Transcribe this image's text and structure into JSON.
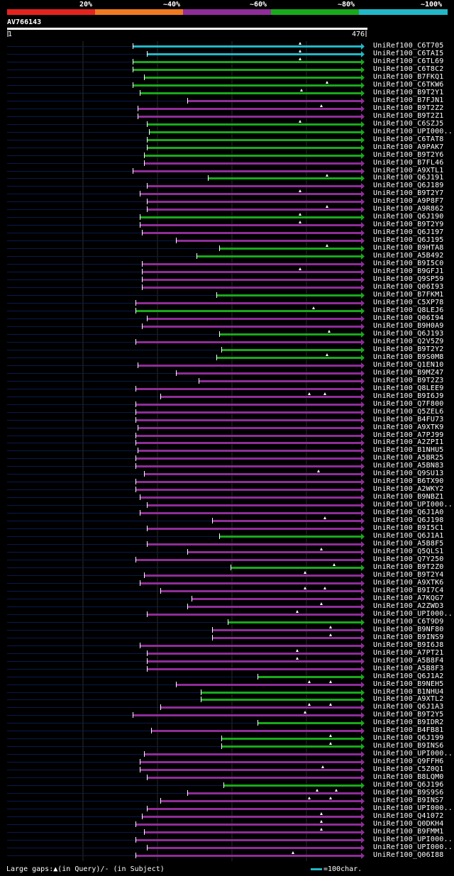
{
  "legend": {
    "labels": [
      "20%",
      "~40%",
      "~60%",
      "~80%",
      "~100%"
    ],
    "colors": [
      "#e3241e",
      "#ef7a1f",
      "#8f2d99",
      "#19a91c",
      "#22b7c7"
    ]
  },
  "query": {
    "id": "AV766143",
    "start": "1",
    "end": "476"
  },
  "footer": {
    "gaps": "Large gaps:▲(in Query)/- (in Subject)",
    "scale": "=100char."
  },
  "line_colors": {
    "query": "#0a1a4a",
    "grid": "#2a2a2a",
    "marker": "#ffffff"
  },
  "hits": [
    {
      "name": "UniRef100_C6T705",
      "start": 188,
      "color": "cyan",
      "tri": [
        423
      ]
    },
    {
      "name": "UniRef100_C6TAI5",
      "start": 208,
      "color": "cyan",
      "tri": [
        423
      ]
    },
    {
      "name": "UniRef100_C6TL69",
      "start": 188,
      "color": "green",
      "tri": [
        423
      ]
    },
    {
      "name": "UniRef100_C6T8C2",
      "start": 188,
      "color": "green",
      "tri": []
    },
    {
      "name": "UniRef100_B7FKQ1",
      "start": 204,
      "color": "green",
      "tri": []
    },
    {
      "name": "UniRef100_C6TKW6",
      "start": 188,
      "color": "green",
      "tri": [
        461
      ]
    },
    {
      "name": "UniRef100_B9T2Y1",
      "start": 198,
      "color": "green",
      "tri": [
        425
      ]
    },
    {
      "name": "UniRef100_B7FJN1",
      "start": 265,
      "color": "magenta",
      "tri": []
    },
    {
      "name": "UniRef100_B9T2Z2",
      "start": 195,
      "color": "magenta",
      "tri": [
        453
      ]
    },
    {
      "name": "UniRef100_B9T2Z1",
      "start": 195,
      "color": "magenta",
      "tri": []
    },
    {
      "name": "UniRef100_C6SZJ5",
      "start": 208,
      "color": "green",
      "tri": [
        423
      ]
    },
    {
      "name": "UniRef100_UPI000..",
      "start": 211,
      "color": "green",
      "tri": []
    },
    {
      "name": "UniRef100_C6TAT8",
      "start": 208,
      "color": "green",
      "tri": []
    },
    {
      "name": "UniRef100_A9PAK7",
      "start": 208,
      "color": "green",
      "tri": []
    },
    {
      "name": "UniRef100_B9T2Y6",
      "start": 204,
      "color": "green",
      "tri": []
    },
    {
      "name": "UniRef100_B7FL46",
      "start": 204,
      "color": "magenta",
      "tri": []
    },
    {
      "name": "UniRef100_A9XTL1",
      "start": 188,
      "color": "magenta",
      "tri": []
    },
    {
      "name": "UniRef100_Q6J191",
      "start": 294,
      "color": "green",
      "tri": [
        461
      ]
    },
    {
      "name": "UniRef100_Q6J189",
      "start": 208,
      "color": "magenta",
      "tri": []
    },
    {
      "name": "UniRef100_B9T2Y7",
      "start": 198,
      "color": "magenta",
      "tri": [
        423
      ]
    },
    {
      "name": "UniRef100_A9P8F7",
      "start": 208,
      "color": "magenta",
      "tri": []
    },
    {
      "name": "UniRef100_A9R862",
      "start": 208,
      "color": "magenta",
      "tri": [
        461
      ]
    },
    {
      "name": "UniRef100_Q6J190",
      "start": 198,
      "color": "green",
      "tri": [
        423
      ]
    },
    {
      "name": "UniRef100_B9T2Y9",
      "start": 198,
      "color": "magenta",
      "tri": [
        423
      ]
    },
    {
      "name": "UniRef100_Q6J197",
      "start": 201,
      "color": "magenta",
      "tri": []
    },
    {
      "name": "UniRef100_Q6J195",
      "start": 249,
      "color": "magenta",
      "tri": []
    },
    {
      "name": "UniRef100_B9HTA8",
      "start": 310,
      "color": "green",
      "tri": [
        461
      ]
    },
    {
      "name": "UniRef100_A5B492",
      "start": 278,
      "color": "green",
      "tri": []
    },
    {
      "name": "UniRef100_B9I5C0",
      "start": 201,
      "color": "magenta",
      "tri": []
    },
    {
      "name": "UniRef100_B9GFJ1",
      "start": 201,
      "color": "magenta",
      "tri": [
        423
      ]
    },
    {
      "name": "UniRef100_Q9SP59",
      "start": 201,
      "color": "magenta",
      "tri": []
    },
    {
      "name": "UniRef100_Q06I93",
      "start": 201,
      "color": "magenta",
      "tri": []
    },
    {
      "name": "UniRef100_B7FKM1",
      "start": 306,
      "color": "green",
      "tri": []
    },
    {
      "name": "UniRef100_C5XP78",
      "start": 192,
      "color": "magenta",
      "tri": []
    },
    {
      "name": "UniRef100_Q8LEJ6",
      "start": 192,
      "color": "green",
      "tri": [
        442
      ]
    },
    {
      "name": "UniRef100_Q06I94",
      "start": 208,
      "color": "magenta",
      "tri": []
    },
    {
      "name": "UniRef100_B9H0A9",
      "start": 201,
      "color": "magenta",
      "tri": []
    },
    {
      "name": "UniRef100_Q6J193",
      "start": 310,
      "color": "green",
      "tri": [
        464
      ]
    },
    {
      "name": "UniRef100_Q2V5Z9",
      "start": 192,
      "color": "magenta",
      "tri": []
    },
    {
      "name": "UniRef100_B9T2Y2",
      "start": 313,
      "color": "green",
      "tri": []
    },
    {
      "name": "UniRef100_B9S0M8",
      "start": 306,
      "color": "green",
      "tri": [
        461
      ]
    },
    {
      "name": "UniRef100_Q1EN10",
      "start": 195,
      "color": "magenta",
      "tri": []
    },
    {
      "name": "UniRef100_B9MZ47",
      "start": 249,
      "color": "magenta",
      "tri": []
    },
    {
      "name": "UniRef100_B9T2Z3",
      "start": 281,
      "color": "magenta",
      "tri": []
    },
    {
      "name": "UniRef100_Q8LEE9",
      "start": 192,
      "color": "magenta",
      "tri": []
    },
    {
      "name": "UniRef100_B9I6J9",
      "start": 227,
      "color": "magenta",
      "tri": [
        436,
        458
      ]
    },
    {
      "name": "UniRef100_Q7F800",
      "start": 192,
      "color": "magenta",
      "tri": []
    },
    {
      "name": "UniRef100_Q5ZEL6",
      "start": 192,
      "color": "magenta",
      "tri": []
    },
    {
      "name": "UniRef100_B4FU73",
      "start": 192,
      "color": "magenta",
      "tri": []
    },
    {
      "name": "UniRef100_A9XTK9",
      "start": 195,
      "color": "magenta",
      "tri": []
    },
    {
      "name": "UniRef100_A7PJ99",
      "start": 192,
      "color": "magenta",
      "tri": []
    },
    {
      "name": "UniRef100_A2ZPI1",
      "start": 192,
      "color": "magenta",
      "tri": []
    },
    {
      "name": "UniRef100_B1NHU5",
      "start": 195,
      "color": "magenta",
      "tri": []
    },
    {
      "name": "UniRef100_A5BR25",
      "start": 192,
      "color": "magenta",
      "tri": []
    },
    {
      "name": "UniRef100_A5BN83",
      "start": 192,
      "color": "magenta",
      "tri": []
    },
    {
      "name": "UniRef100_Q9SU13",
      "start": 204,
      "color": "magenta",
      "tri": [
        449
      ]
    },
    {
      "name": "UniRef100_B6TX90",
      "start": 192,
      "color": "magenta",
      "tri": []
    },
    {
      "name": "UniRef100_A2WKY2",
      "start": 192,
      "color": "magenta",
      "tri": []
    },
    {
      "name": "UniRef100_B9NBZ1",
      "start": 198,
      "color": "magenta",
      "tri": []
    },
    {
      "name": "UniRef100_UPI000..",
      "start": 208,
      "color": "magenta",
      "tri": []
    },
    {
      "name": "UniRef100_Q6J1A0",
      "start": 198,
      "color": "magenta",
      "tri": []
    },
    {
      "name": "UniRef100_Q6J198",
      "start": 300,
      "color": "magenta",
      "tri": [
        458
      ]
    },
    {
      "name": "UniRef100_B9I5C1",
      "start": 208,
      "color": "magenta",
      "tri": []
    },
    {
      "name": "UniRef100_Q6J1A1",
      "start": 310,
      "color": "green",
      "tri": []
    },
    {
      "name": "UniRef100_A5B8F5",
      "start": 208,
      "color": "magenta",
      "tri": []
    },
    {
      "name": "UniRef100_Q5QLS1",
      "start": 265,
      "color": "magenta",
      "tri": [
        453
      ]
    },
    {
      "name": "UniRef100_Q7Y250",
      "start": 192,
      "color": "magenta",
      "tri": []
    },
    {
      "name": "UniRef100_B9T2Z0",
      "start": 326,
      "color": "green",
      "tri": [
        471
      ]
    },
    {
      "name": "UniRef100_B9T2Y4",
      "start": 204,
      "color": "magenta",
      "tri": [
        430
      ]
    },
    {
      "name": "UniRef100_A9XTK6",
      "start": 198,
      "color": "magenta",
      "tri": []
    },
    {
      "name": "UniRef100_B9I7C4",
      "start": 227,
      "color": "magenta",
      "tri": [
        430,
        458
      ]
    },
    {
      "name": "UniRef100_A7KQG7",
      "start": 271,
      "color": "magenta",
      "tri": []
    },
    {
      "name": "UniRef100_A2ZWD3",
      "start": 265,
      "color": "magenta",
      "tri": [
        453
      ]
    },
    {
      "name": "UniRef100_UPI000..",
      "start": 208,
      "color": "magenta",
      "tri": [
        419
      ]
    },
    {
      "name": "UniRef100_C6T9D9",
      "start": 322,
      "color": "green",
      "tri": []
    },
    {
      "name": "UniRef100_B9NF80",
      "start": 300,
      "color": "magenta",
      "tri": [
        466
      ]
    },
    {
      "name": "UniRef100_B9INS9",
      "start": 300,
      "color": "magenta",
      "tri": [
        466
      ]
    },
    {
      "name": "UniRef100_B9I6J8",
      "start": 198,
      "color": "magenta",
      "tri": []
    },
    {
      "name": "UniRef100_A7PT21",
      "start": 208,
      "color": "magenta",
      "tri": [
        419
      ]
    },
    {
      "name": "UniRef100_A5B8F4",
      "start": 208,
      "color": "magenta",
      "tri": [
        419
      ]
    },
    {
      "name": "UniRef100_A5B8F3",
      "start": 208,
      "color": "magenta",
      "tri": []
    },
    {
      "name": "UniRef100_Q6J1A2",
      "start": 364,
      "color": "green",
      "tri": []
    },
    {
      "name": "UniRef100_B9NEH5",
      "start": 249,
      "color": "magenta",
      "tri": [
        436,
        466
      ]
    },
    {
      "name": "UniRef100_B1NHU4",
      "start": 284,
      "color": "green",
      "tri": []
    },
    {
      "name": "UniRef100_A9XTL2",
      "start": 284,
      "color": "green",
      "tri": []
    },
    {
      "name": "UniRef100_Q6J1A3",
      "start": 227,
      "color": "magenta",
      "tri": [
        436,
        466
      ]
    },
    {
      "name": "UniRef100_B9T2Y5",
      "start": 188,
      "color": "magenta",
      "tri": [
        430
      ]
    },
    {
      "name": "UniRef100_B9IDR2",
      "start": 364,
      "color": "green",
      "tri": []
    },
    {
      "name": "UniRef100_B4FB81",
      "start": 214,
      "color": "magenta",
      "tri": []
    },
    {
      "name": "UniRef100_Q6J199",
      "start": 313,
      "color": "green",
      "tri": [
        466
      ]
    },
    {
      "name": "UniRef100_B9INS6",
      "start": 313,
      "color": "green",
      "tri": [
        466
      ]
    },
    {
      "name": "UniRef100_UPI000..",
      "start": 204,
      "color": "magenta",
      "tri": []
    },
    {
      "name": "UniRef100_Q9FFH6",
      "start": 198,
      "color": "magenta",
      "tri": []
    },
    {
      "name": "UniRef100_C5Z0Q1",
      "start": 198,
      "color": "magenta",
      "tri": [
        455
      ]
    },
    {
      "name": "UniRef100_B8LQM0",
      "start": 208,
      "color": "magenta",
      "tri": []
    },
    {
      "name": "UniRef100_Q6J196",
      "start": 316,
      "color": "green",
      "tri": []
    },
    {
      "name": "UniRef100_B9S9S6",
      "start": 265,
      "color": "magenta",
      "tri": [
        447,
        474
      ]
    },
    {
      "name": "UniRef100_B9INS7",
      "start": 227,
      "color": "magenta",
      "tri": [
        436,
        466
      ]
    },
    {
      "name": "UniRef100_UPI000..",
      "start": 208,
      "color": "magenta",
      "tri": []
    },
    {
      "name": "UniRef100_Q41072",
      "start": 201,
      "color": "magenta",
      "tri": [
        453
      ]
    },
    {
      "name": "UniRef100_Q0DKH4",
      "start": 192,
      "color": "magenta",
      "tri": [
        453
      ]
    },
    {
      "name": "UniRef100_B9FMM1",
      "start": 204,
      "color": "magenta",
      "tri": [
        453
      ]
    },
    {
      "name": "UniRef100_UPI000..",
      "start": 192,
      "color": "magenta",
      "tri": []
    },
    {
      "name": "UniRef100_UPI000..",
      "start": 208,
      "color": "magenta",
      "tri": []
    },
    {
      "name": "UniRef100_Q06I88",
      "start": 192,
      "color": "magenta",
      "tri": [
        413
      ]
    }
  ]
}
